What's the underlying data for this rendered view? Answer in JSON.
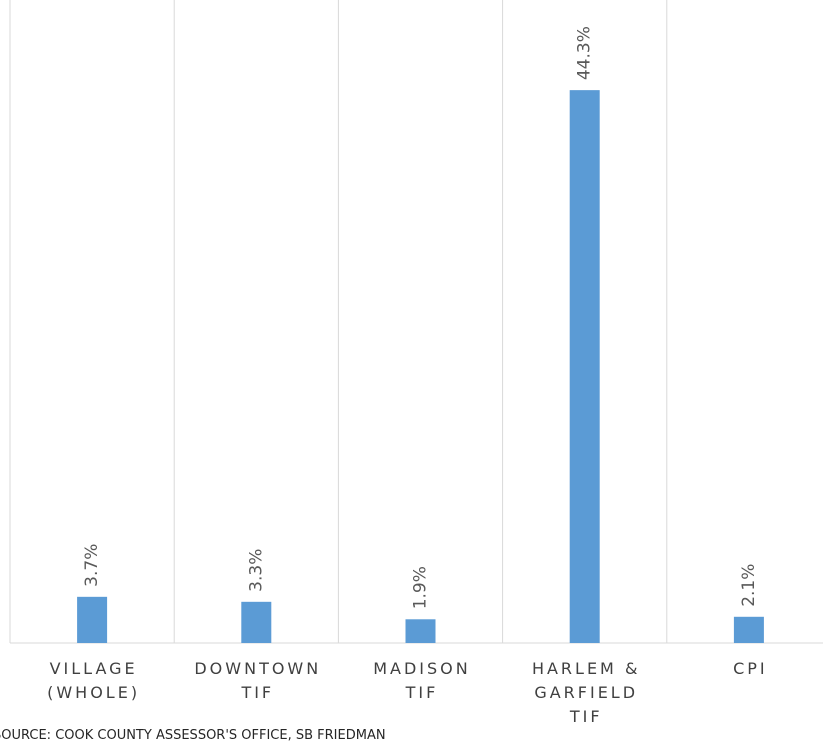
{
  "chart_data": {
    "type": "bar",
    "categories": [
      "VILLAGE (WHOLE)",
      "DOWNTOWN TIF",
      "MADISON TIF",
      "HARLEM & GARFIELD TIF",
      "CPI"
    ],
    "values": [
      3.7,
      3.3,
      1.9,
      44.3,
      2.1
    ],
    "value_labels": [
      "3.7%",
      "3.3%",
      "1.9%",
      "44.3%",
      "2.1%"
    ],
    "color": "#5b9bd5",
    "ylim": [
      0,
      50
    ],
    "source": "SOURCE: COOK COUNTY ASSESSOR'S OFFICE, SB FRIEDMAN"
  }
}
